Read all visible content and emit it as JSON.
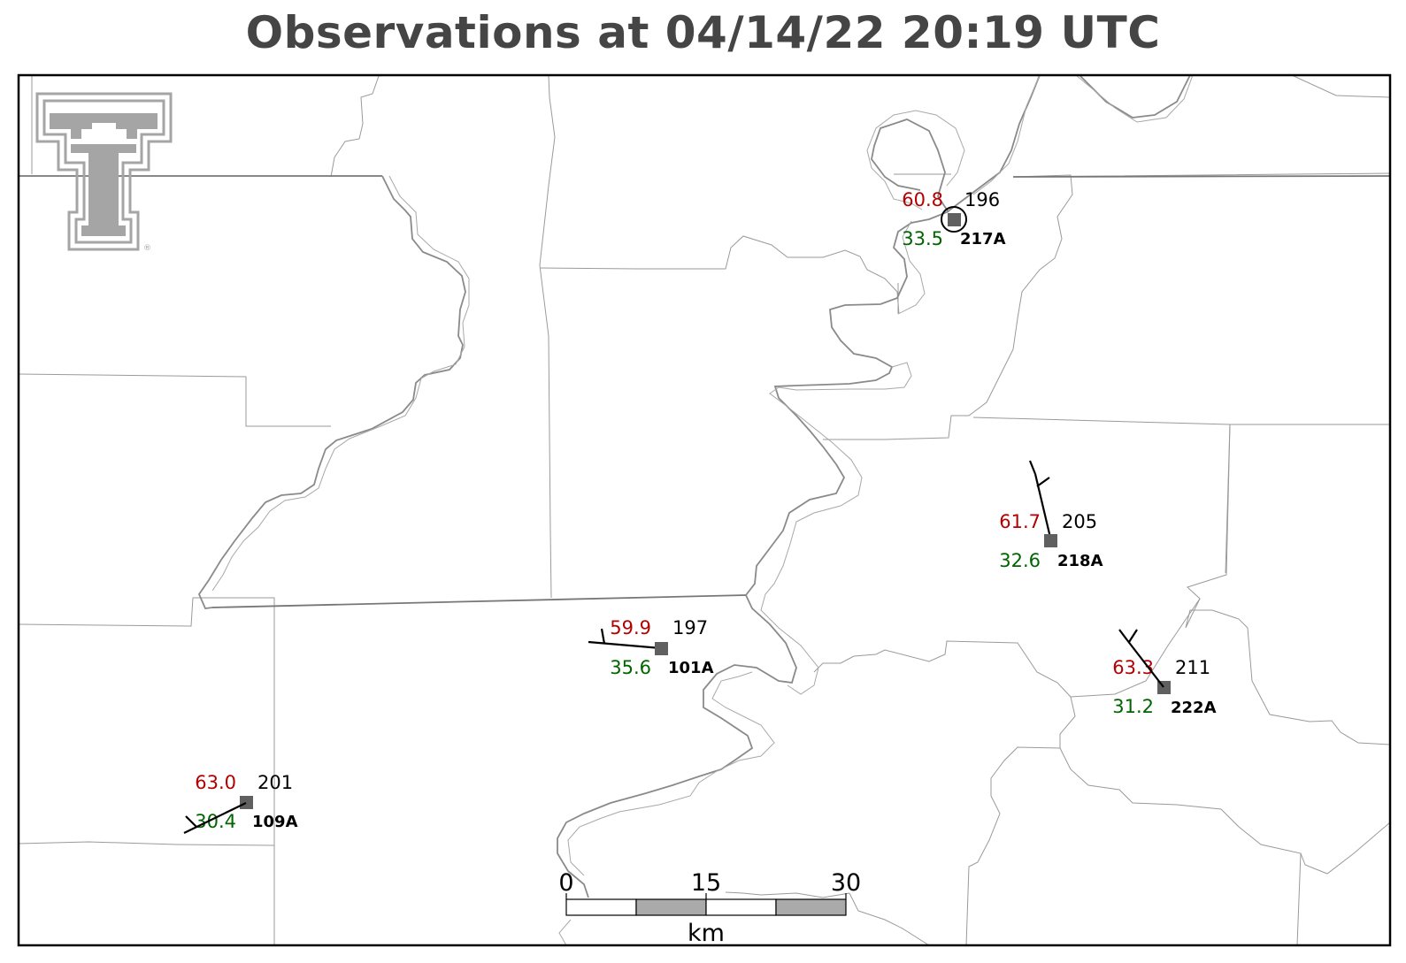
{
  "title": "Observations at 04/14/22 20:19 UTC",
  "colors": {
    "temperature": "#b30000",
    "dewpoint": "#006400",
    "station_marker": "#606060",
    "county_line": "#9a9a9a",
    "state_line": "#777777",
    "river": "#888888",
    "logo": "#a5a5a5"
  },
  "logo": {
    "icon": "texas-tech-double-t-logo",
    "mark": "®"
  },
  "stations": [
    {
      "id": "217A",
      "temperature": "60.8",
      "dewpoint": "33.5",
      "wind_direction": "196",
      "wind": "calm"
    },
    {
      "id": "218A",
      "temperature": "61.7",
      "dewpoint": "32.6",
      "wind_direction": "205",
      "wind": "barb"
    },
    {
      "id": "222A",
      "temperature": "63.3",
      "dewpoint": "31.2",
      "wind_direction": "211",
      "wind": "barb"
    },
    {
      "id": "101A",
      "temperature": "59.9",
      "dewpoint": "35.6",
      "wind_direction": "197",
      "wind": "barb"
    },
    {
      "id": "109A",
      "temperature": "63.0",
      "dewpoint": "30.4",
      "wind_direction": "201",
      "wind": "barb"
    }
  ],
  "scale_bar": {
    "ticks": [
      "0",
      "15",
      "30"
    ],
    "unit": "km"
  }
}
